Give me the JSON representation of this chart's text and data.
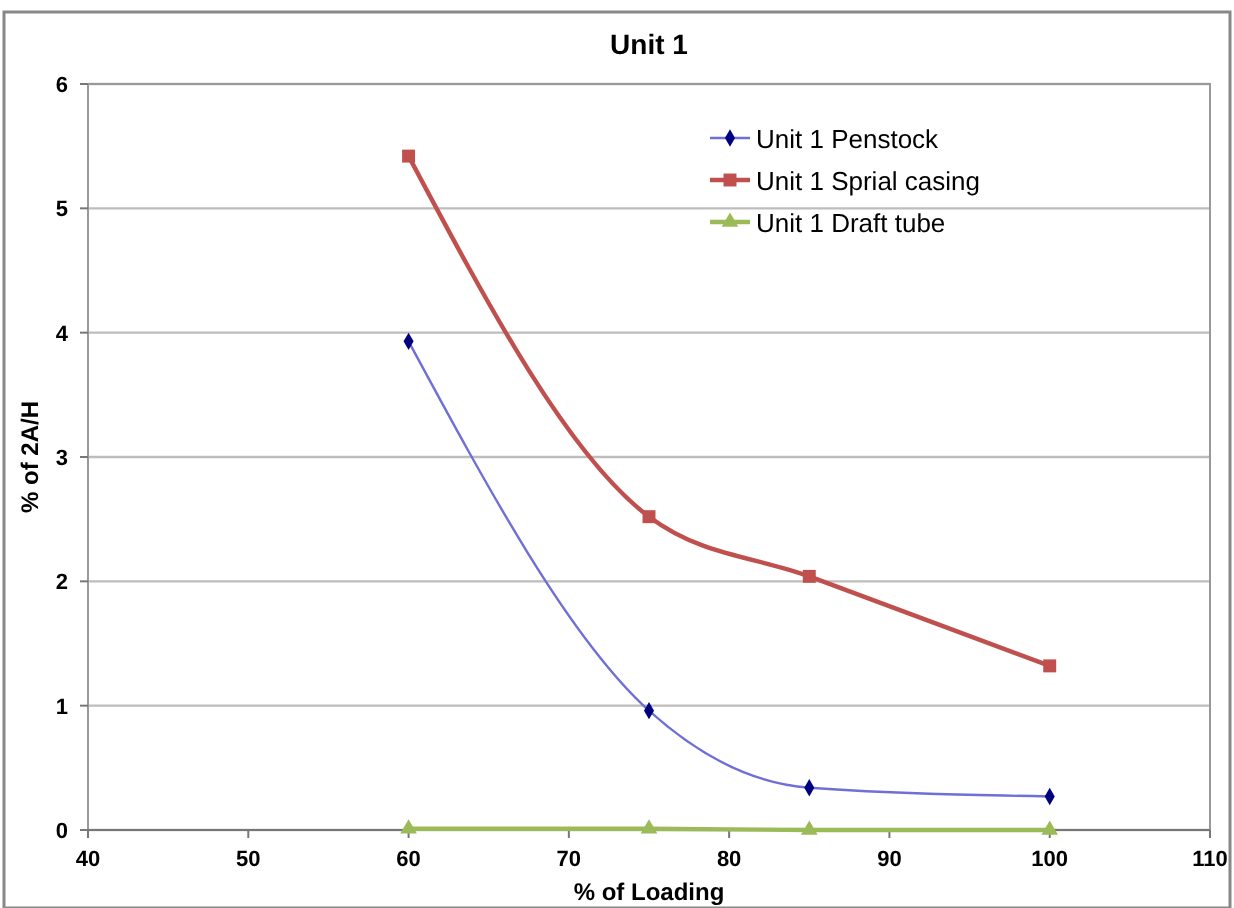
{
  "chart_data": {
    "type": "line",
    "title": "Unit 1",
    "xlabel": "% of Loading",
    "ylabel": "% of 2A/H",
    "xlim": [
      40,
      110
    ],
    "xticks": [
      40,
      50,
      60,
      70,
      80,
      90,
      100,
      110
    ],
    "ylim": [
      0,
      6
    ],
    "yticks": [
      0,
      1,
      2,
      3,
      4,
      5,
      6
    ],
    "grid": "y",
    "legend": "top right",
    "x": [
      60,
      75,
      85,
      100
    ],
    "series": [
      {
        "name": "Unit 1 Penstock",
        "color": "#6f6fd6",
        "marker": "diamond",
        "values": [
          3.93,
          0.96,
          0.34,
          0.27
        ]
      },
      {
        "name": "Unit 1 Sprial casing",
        "color": "#c0504d",
        "marker": "square",
        "values": [
          5.42,
          2.52,
          2.04,
          1.32
        ]
      },
      {
        "name": "Unit 1 Draft tube",
        "color": "#9bbb59",
        "marker": "triangle",
        "values": [
          0.01,
          0.01,
          0,
          0
        ]
      }
    ]
  }
}
